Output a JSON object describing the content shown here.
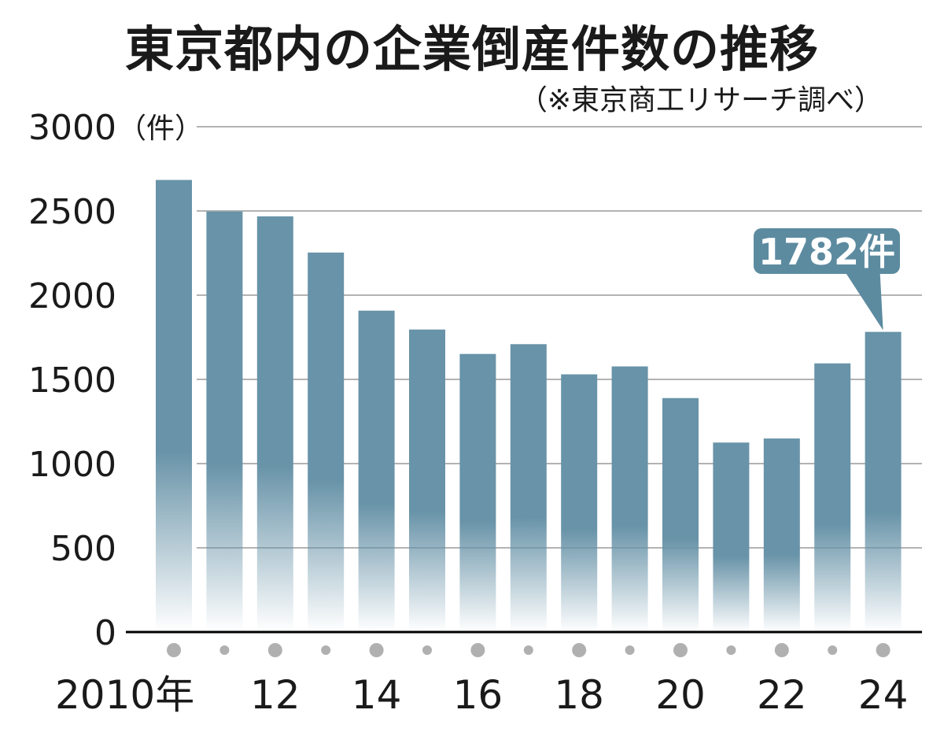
{
  "chart_data": {
    "type": "bar",
    "title": "東京都内の企業倒産件数の推移",
    "subtitle": "（※東京商工リサーチ調べ）",
    "ylabel_unit": "（件）",
    "x": [
      2010,
      2011,
      2012,
      2013,
      2014,
      2015,
      2016,
      2017,
      2018,
      2019,
      2020,
      2021,
      2022,
      2023,
      2024
    ],
    "values": [
      2684,
      2497,
      2468,
      2253,
      1908,
      1796,
      1651,
      1709,
      1530,
      1577,
      1389,
      1125,
      1149,
      1595,
      1782
    ],
    "x_tick_labels": [
      "2010年",
      "12",
      "14",
      "16",
      "18",
      "20",
      "22",
      "24"
    ],
    "y_ticks": [
      "3000",
      "2500",
      "2000",
      "1500",
      "1000",
      "500",
      "0"
    ],
    "ylim": [
      0,
      3000
    ],
    "grid": true,
    "annotation": {
      "text": "1782件",
      "year": 2024
    },
    "colors": {
      "bar": "#6893a8",
      "grid": "#b3b3b3",
      "callout": "#5c8ba0",
      "axis": "#000000",
      "dot": "#b0b0b0"
    }
  }
}
